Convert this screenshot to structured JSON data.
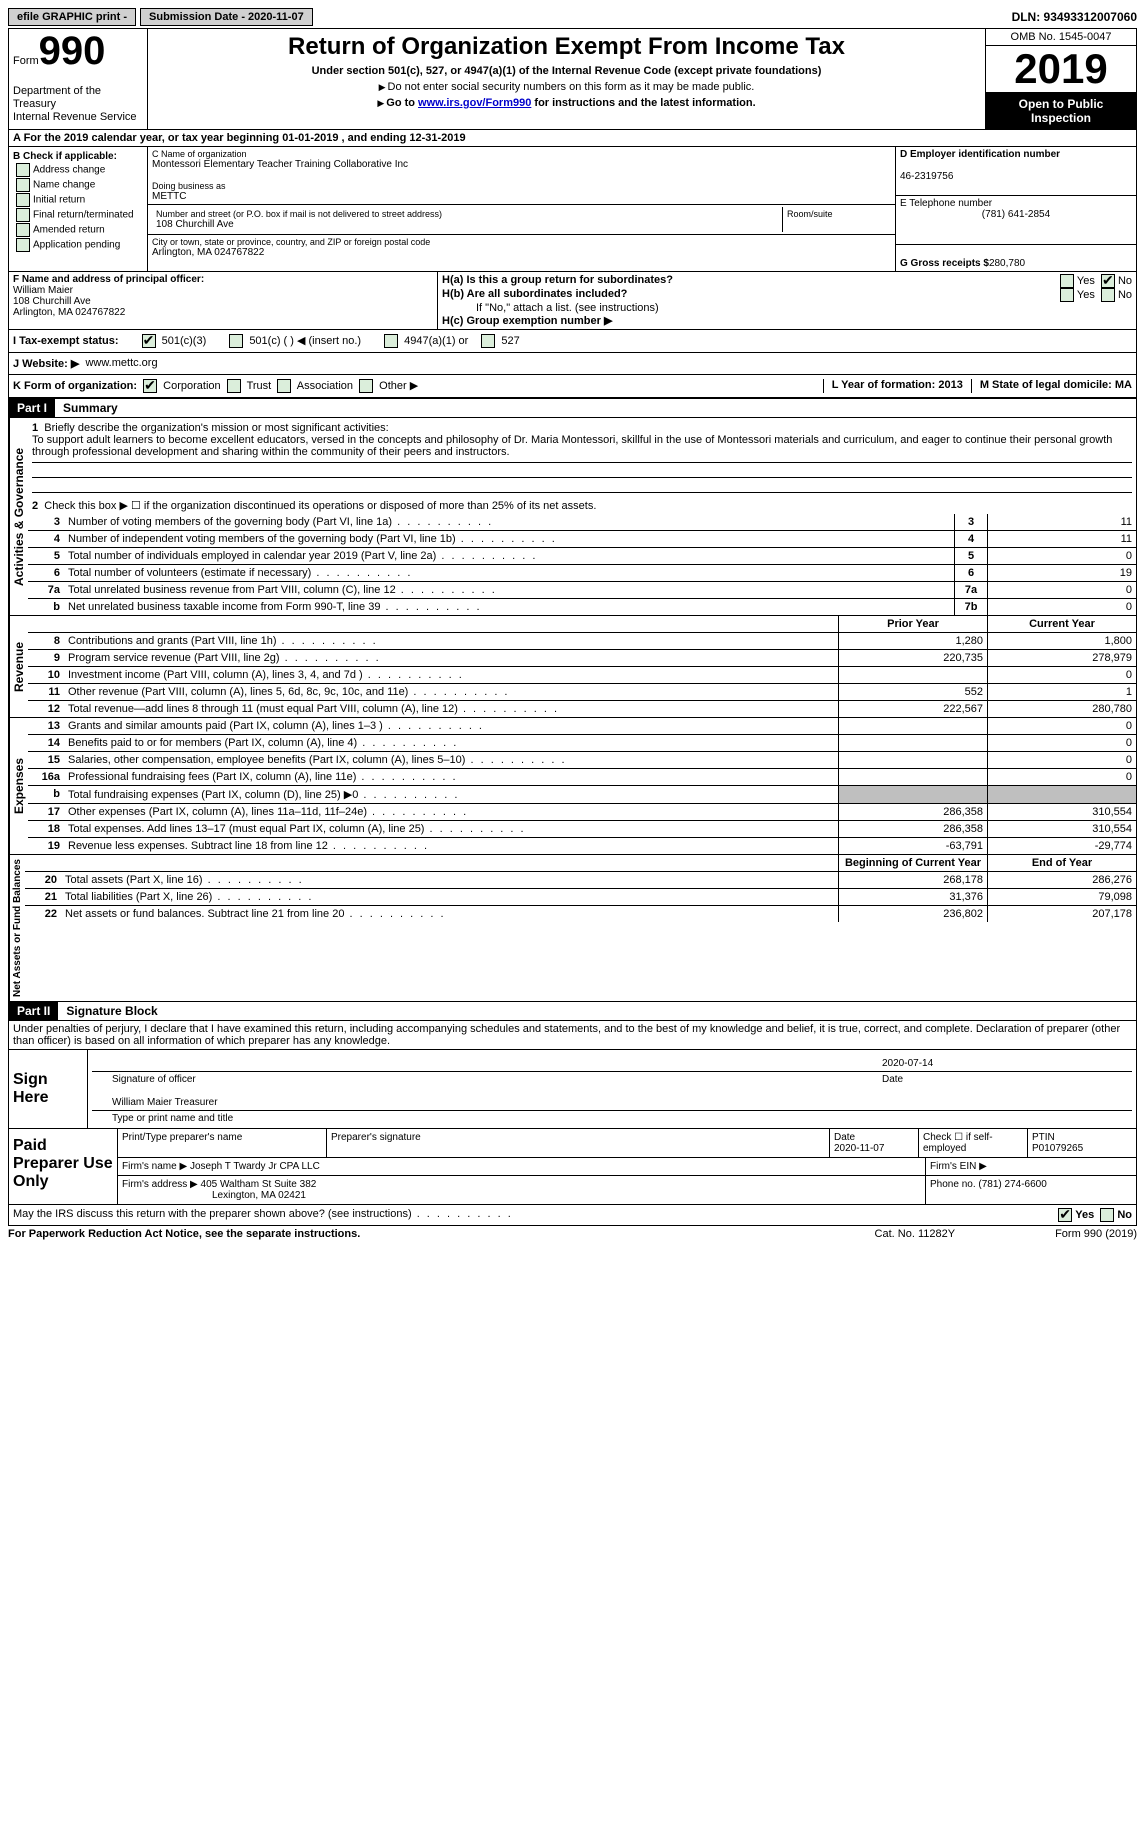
{
  "top": {
    "efile": "efile GRAPHIC print -",
    "submission": "Submission Date - 2020-11-07",
    "dln": "DLN: 93493312007060"
  },
  "header": {
    "form_prefix": "Form",
    "form_number": "990",
    "dept": "Department of the Treasury\nInternal Revenue Service",
    "title": "Return of Organization Exempt From Income Tax",
    "subtitle": "Under section 501(c), 527, or 4947(a)(1) of the Internal Revenue Code (except private foundations)",
    "note1": "Do not enter social security numbers on this form as it may be made public.",
    "note2_prefix": "Go to ",
    "note2_link": "www.irs.gov/Form990",
    "note2_suffix": " for instructions and the latest information.",
    "omb": "OMB No. 1545-0047",
    "year": "2019",
    "open": "Open to Public Inspection"
  },
  "a_row": "A For the 2019 calendar year, or tax year beginning 01-01-2019    , and ending 12-31-2019",
  "b": {
    "label": "B Check if applicable:",
    "items": [
      "Address change",
      "Name change",
      "Initial return",
      "Final return/terminated",
      "Amended return",
      "Application pending"
    ]
  },
  "c": {
    "name_label": "C Name of organization",
    "name": "Montessori Elementary Teacher Training Collaborative Inc",
    "dba_label": "Doing business as",
    "dba": "METTC",
    "street_label": "Number and street (or P.O. box if mail is not delivered to street address)",
    "room_label": "Room/suite",
    "street": "108 Churchill Ave",
    "city_label": "City or town, state or province, country, and ZIP or foreign postal code",
    "city": "Arlington, MA  024767822"
  },
  "d": {
    "ein_label": "D Employer identification number",
    "ein": "46-2319756",
    "phone_label": "E Telephone number",
    "phone": "(781) 641-2854",
    "gross_label": "G Gross receipts $",
    "gross": "280,780"
  },
  "f": {
    "label": "F Name and address of principal officer:",
    "name": "William Maier",
    "street": "108 Churchill Ave",
    "city": "Arlington, MA  024767822"
  },
  "h": {
    "a": "H(a)  Is this a group return for subordinates?",
    "b": "H(b)  Are all subordinates included?",
    "b_note": "If \"No,\" attach a list. (see instructions)",
    "c": "H(c)  Group exemption number ▶",
    "yes": "Yes",
    "no": "No"
  },
  "i": {
    "label": "I   Tax-exempt status:",
    "opts": [
      "501(c)(3)",
      "501(c) (  ) ◀ (insert no.)",
      "4947(a)(1) or",
      "527"
    ]
  },
  "j": {
    "label": "J   Website: ▶",
    "value": "www.mettc.org"
  },
  "k": {
    "label": "K Form of organization:",
    "opts": [
      "Corporation",
      "Trust",
      "Association",
      "Other ▶"
    ],
    "l": "L Year of formation: 2013",
    "m": "M State of legal domicile: MA"
  },
  "part1": {
    "label": "Part I",
    "title": "Summary",
    "q1_label": "1",
    "q1": "Briefly describe the organization's mission or most significant activities:",
    "q1_text": "To support adult learners to become excellent educators, versed in the concepts and philosophy of Dr. Maria Montessori, skillful in the use of Montessori materials and curriculum, and eager to continue their personal growth through professional development and sharing within the community of their peers and instructors.",
    "q2_label": "2",
    "q2": "Check this box ▶ ☐  if the organization discontinued its operations or disposed of more than 25% of its net assets."
  },
  "gov_rows": [
    {
      "n": "3",
      "t": "Number of voting members of the governing body (Part VI, line 1a)",
      "box": "3",
      "v": "11"
    },
    {
      "n": "4",
      "t": "Number of independent voting members of the governing body (Part VI, line 1b)",
      "box": "4",
      "v": "11"
    },
    {
      "n": "5",
      "t": "Total number of individuals employed in calendar year 2019 (Part V, line 2a)",
      "box": "5",
      "v": "0"
    },
    {
      "n": "6",
      "t": "Total number of volunteers (estimate if necessary)",
      "box": "6",
      "v": "19"
    },
    {
      "n": "7a",
      "t": "Total unrelated business revenue from Part VIII, column (C), line 12",
      "box": "7a",
      "v": "0"
    },
    {
      "n": "b",
      "t": "Net unrelated business taxable income from Form 990-T, line 39",
      "box": "7b",
      "v": "0"
    }
  ],
  "gov_label": "Activities & Governance",
  "rev_label": "Revenue",
  "exp_label": "Expenses",
  "net_label": "Net Assets or Fund Balances",
  "col_hdrs": {
    "prior": "Prior Year",
    "current": "Current Year",
    "begin": "Beginning of Current Year",
    "end": "End of Year"
  },
  "rev_rows": [
    {
      "n": "8",
      "t": "Contributions and grants (Part VIII, line 1h)",
      "p": "1,280",
      "c": "1,800"
    },
    {
      "n": "9",
      "t": "Program service revenue (Part VIII, line 2g)",
      "p": "220,735",
      "c": "278,979"
    },
    {
      "n": "10",
      "t": "Investment income (Part VIII, column (A), lines 3, 4, and 7d )",
      "p": "",
      "c": "0"
    },
    {
      "n": "11",
      "t": "Other revenue (Part VIII, column (A), lines 5, 6d, 8c, 9c, 10c, and 11e)",
      "p": "552",
      "c": "1"
    },
    {
      "n": "12",
      "t": "Total revenue—add lines 8 through 11 (must equal Part VIII, column (A), line 12)",
      "p": "222,567",
      "c": "280,780"
    }
  ],
  "exp_rows": [
    {
      "n": "13",
      "t": "Grants and similar amounts paid (Part IX, column (A), lines 1–3 )",
      "p": "",
      "c": "0"
    },
    {
      "n": "14",
      "t": "Benefits paid to or for members (Part IX, column (A), line 4)",
      "p": "",
      "c": "0"
    },
    {
      "n": "15",
      "t": "Salaries, other compensation, employee benefits (Part IX, column (A), lines 5–10)",
      "p": "",
      "c": "0"
    },
    {
      "n": "16a",
      "t": "Professional fundraising fees (Part IX, column (A), line 11e)",
      "p": "",
      "c": "0"
    },
    {
      "n": "b",
      "t": "Total fundraising expenses (Part IX, column (D), line 25) ▶0",
      "p": "gray",
      "c": "gray"
    },
    {
      "n": "17",
      "t": "Other expenses (Part IX, column (A), lines 11a–11d, 11f–24e)",
      "p": "286,358",
      "c": "310,554"
    },
    {
      "n": "18",
      "t": "Total expenses. Add lines 13–17 (must equal Part IX, column (A), line 25)",
      "p": "286,358",
      "c": "310,554"
    },
    {
      "n": "19",
      "t": "Revenue less expenses. Subtract line 18 from line 12",
      "p": "-63,791",
      "c": "-29,774"
    }
  ],
  "net_rows": [
    {
      "n": "20",
      "t": "Total assets (Part X, line 16)",
      "p": "268,178",
      "c": "286,276"
    },
    {
      "n": "21",
      "t": "Total liabilities (Part X, line 26)",
      "p": "31,376",
      "c": "79,098"
    },
    {
      "n": "22",
      "t": "Net assets or fund balances. Subtract line 21 from line 20",
      "p": "236,802",
      "c": "207,178"
    }
  ],
  "part2": {
    "label": "Part II",
    "title": "Signature Block",
    "perjury": "Under penalties of perjury, I declare that I have examined this return, including accompanying schedules and statements, and to the best of my knowledge and belief, it is true, correct, and complete. Declaration of preparer (other than officer) is based on all information of which preparer has any knowledge."
  },
  "sign": {
    "label": "Sign Here",
    "sig_label": "Signature of officer",
    "date": "2020-07-14",
    "date_label": "Date",
    "name": "William Maier  Treasurer",
    "name_label": "Type or print name and title"
  },
  "paid": {
    "label": "Paid Preparer Use Only",
    "h1": "Print/Type preparer's name",
    "h2": "Preparer's signature",
    "h3": "Date",
    "date": "2020-11-07",
    "h4": "Check ☐ if self-employed",
    "h5": "PTIN",
    "ptin": "P01079265",
    "firm_label": "Firm's name    ▶",
    "firm": "Joseph T Twardy Jr CPA LLC",
    "ein_label": "Firm's EIN ▶",
    "addr_label": "Firm's address ▶",
    "addr1": "405 Waltham St Suite 382",
    "addr2": "Lexington, MA  02421",
    "phone_label": "Phone no.",
    "phone": "(781) 274-6600"
  },
  "discuss": {
    "text": "May the IRS discuss this return with the preparer shown above? (see instructions)",
    "yes": "Yes",
    "no": "No"
  },
  "footer": {
    "left": "For Paperwork Reduction Act Notice, see the separate instructions.",
    "mid": "Cat. No. 11282Y",
    "right": "Form 990 (2019)"
  }
}
